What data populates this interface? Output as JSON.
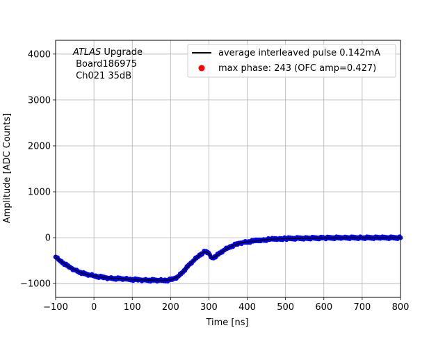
{
  "chart_data": {
    "type": "scatter",
    "xlabel": "Time [ns]",
    "ylabel": "Amplitude [ADC Counts]",
    "xlim": [
      -100,
      800
    ],
    "ylim": [
      -1300,
      4300
    ],
    "xticks": [
      -100,
      0,
      100,
      200,
      300,
      400,
      500,
      600,
      700,
      800
    ],
    "yticks": [
      -1000,
      0,
      1000,
      2000,
      3000,
      4000
    ],
    "grid": true,
    "legend_position": "top-right",
    "annotation": {
      "line1_italic": "ATLAS",
      "line1_rest": " Upgrade",
      "line2": " Board186975",
      "line3": " Ch021 35dB"
    },
    "series": [
      {
        "name": "average interleaved pulse 0.142mA",
        "kind": "line",
        "color": "#000000",
        "x": [
          -100,
          -90,
          -80,
          -70,
          -60,
          -50,
          -40,
          -30,
          -20,
          -10,
          0,
          10,
          20,
          30,
          40,
          50,
          60,
          70,
          80,
          90,
          100,
          110,
          120,
          130,
          140,
          150,
          160,
          170,
          180,
          190,
          200,
          210,
          220,
          230,
          240,
          250,
          260,
          270,
          280,
          290,
          300,
          305,
          310,
          320,
          330,
          340,
          350,
          360,
          370,
          380,
          390,
          400,
          420,
          440,
          460,
          480,
          500,
          550,
          600,
          650,
          700,
          750,
          800
        ],
        "y": [
          -420,
          -490,
          -550,
          -610,
          -660,
          -700,
          -740,
          -770,
          -800,
          -815,
          -830,
          -845,
          -860,
          -870,
          -880,
          -885,
          -890,
          -895,
          -900,
          -905,
          -910,
          -915,
          -918,
          -920,
          -922,
          -925,
          -928,
          -930,
          -930,
          -925,
          -915,
          -890,
          -840,
          -760,
          -670,
          -580,
          -500,
          -420,
          -350,
          -300,
          -340,
          -420,
          -440,
          -390,
          -330,
          -270,
          -220,
          -180,
          -150,
          -120,
          -100,
          -90,
          -70,
          -50,
          -35,
          -25,
          -20,
          -10,
          -5,
          0,
          0,
          0,
          0
        ]
      },
      {
        "name": "",
        "kind": "markers",
        "color": "#0000ff",
        "note": "dense blue markers following the average pulse",
        "x": [
          -100,
          -90,
          -80,
          -70,
          -60,
          -50,
          -40,
          -30,
          -20,
          -10,
          0,
          10,
          20,
          30,
          40,
          50,
          60,
          70,
          80,
          90,
          100,
          110,
          120,
          130,
          140,
          150,
          160,
          170,
          180,
          190,
          200,
          210,
          220,
          230,
          240,
          250,
          260,
          270,
          280,
          290,
          300,
          305,
          310,
          320,
          330,
          340,
          350,
          360,
          370,
          380,
          390,
          400,
          420,
          440,
          460,
          480,
          500,
          550,
          600,
          650,
          700,
          750,
          800
        ],
        "y": [
          -420,
          -490,
          -550,
          -610,
          -660,
          -700,
          -740,
          -770,
          -800,
          -815,
          -830,
          -845,
          -860,
          -870,
          -880,
          -885,
          -890,
          -895,
          -900,
          -905,
          -910,
          -915,
          -918,
          -920,
          -922,
          -925,
          -928,
          -930,
          -930,
          -925,
          -915,
          -890,
          -840,
          -760,
          -670,
          -580,
          -500,
          -420,
          -350,
          -300,
          -340,
          -420,
          -440,
          -390,
          -330,
          -270,
          -220,
          -180,
          -150,
          -120,
          -100,
          -90,
          -70,
          -50,
          -35,
          -25,
          -20,
          -10,
          -5,
          0,
          0,
          0,
          0
        ]
      },
      {
        "name": "max phase: 243 (OFC amp=0.427)",
        "kind": "marker",
        "color": "#ff0000",
        "x": [],
        "y": []
      }
    ]
  }
}
